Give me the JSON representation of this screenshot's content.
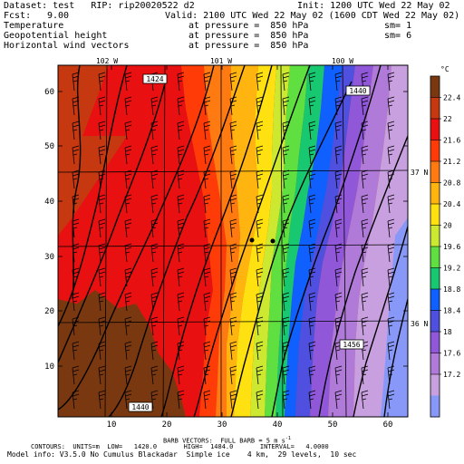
{
  "header": {
    "dataset_line": "Dataset: test   RIP: rip20020522 d2",
    "init_line": "Init: 1200 UTC Wed 22 May 02",
    "fcst_label": "Fcst:",
    "fcst_value": "9.00",
    "valid_line": "Valid: 2100 UTC Wed 22 May 02 (1600 CDT Wed 22 May 02)",
    "fields": [
      {
        "name": "Temperature",
        "pressure": "at pressure =  850 hPa",
        "sm": "sm= 1"
      },
      {
        "name": "Geopotential height",
        "pressure": "at pressure =  850 hPa",
        "sm": "sm= 6"
      },
      {
        "name": "Horizontal wind vectors",
        "pressure": "at pressure =  850 hPa",
        "sm": ""
      }
    ]
  },
  "map": {
    "top_longitudes": [
      "102 W",
      "101 W",
      "100 W"
    ],
    "right_latitudes": [
      "37 N",
      "36 N"
    ],
    "x_ticks": [
      "10",
      "20",
      "30",
      "40",
      "50",
      "60"
    ],
    "y_ticks": [
      "10",
      "20",
      "30",
      "40",
      "50",
      "60"
    ],
    "contour_labels": [
      "1424",
      "1440",
      "1456",
      "1440"
    ],
    "colors": {
      "c0": "#7a3810",
      "c1": "#c63810",
      "c2": "#e81010",
      "c3": "#ff3c08",
      "c4": "#ff7a10",
      "c5": "#ffb410",
      "c6": "#ffe010",
      "c7": "#cce830",
      "c8": "#60e040",
      "c9": "#18c870",
      "c10": "#1060ff",
      "c11": "#5050e0",
      "c12": "#9058d8",
      "c13": "#b07ad8",
      "c14": "#c8a0e0",
      "c15": "#8898f8"
    }
  },
  "colorbar": {
    "unit": "°C",
    "labels": [
      "22.4",
      "22",
      "21.6",
      "21.2",
      "20.8",
      "20.4",
      "20",
      "19.6",
      "19.2",
      "18.8",
      "18.4",
      "18",
      "17.6",
      "17.2"
    ],
    "colors": [
      "#7a3810",
      "#c63810",
      "#e81010",
      "#ff3c08",
      "#ff7a10",
      "#ffb410",
      "#ffe010",
      "#cce830",
      "#60e040",
      "#18c870",
      "#1060ff",
      "#5050e0",
      "#9058d8",
      "#b07ad8",
      "#c8a0e0",
      "#8898f8"
    ]
  },
  "footer": {
    "barb_line": "BARB VECTORS:  FULL BARB = 5 m s",
    "barb_exp": "-1",
    "contours_line": "CONTOURS:  UNITS=m  LOW=   1420.0       HIGH=  1484.0       INTERVAL=   4.0000",
    "model_line": "Model info: V3.5.0 No Cumulus Blackadar  Simple ice    4 km,  29 levels,  10 sec"
  }
}
